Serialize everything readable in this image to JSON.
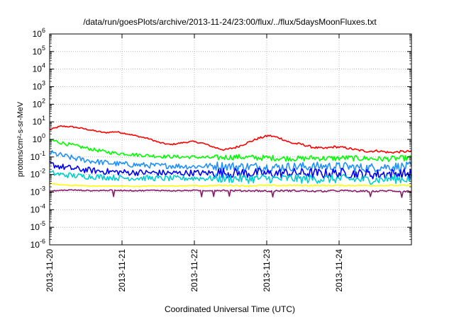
{
  "chart_data": {
    "type": "line",
    "title": "/data/run/goesPlots/archive/2013-11-24/23:00/flux/../flux/5daysMoonFluxes.txt",
    "xlabel": "Coordinated Universal Time (UTC)",
    "ylabel": "protons/cm²-s-sr-MeV",
    "y_scale": "log",
    "ylim_exponents": [
      -6,
      6
    ],
    "y_tick_exponents": [
      -6,
      -5,
      -4,
      -3,
      -2,
      -1,
      0,
      1,
      2,
      3,
      4,
      5,
      6
    ],
    "xlim_days": [
      0,
      5
    ],
    "x_ticks": [
      "2013-11-20",
      "2013-11-21",
      "2013-11-22",
      "2013-11-23",
      "2013-11-24"
    ],
    "grid": true,
    "legend": "none",
    "series": [
      {
        "color": "#ff0000",
        "log10_values": [
          0.55,
          0.75,
          0.72,
          0.62,
          0.5,
          0.38,
          0.44,
          0.33,
          0.18,
          0.05,
          -0.18,
          -0.3,
          -0.2,
          -0.12,
          -0.22,
          -0.45,
          -0.6,
          -0.45,
          -0.2,
          0.05,
          0.22,
          0.08,
          -0.2,
          -0.28,
          -0.45,
          -0.52,
          -0.42,
          -0.48,
          -0.6,
          -0.68,
          -0.65,
          -0.75,
          -0.7,
          -0.68
        ]
      },
      {
        "color": "#00ff00",
        "log10_values": [
          -0.02,
          -0.18,
          -0.32,
          -0.45,
          -0.58,
          -0.7,
          -0.78,
          -0.82,
          -0.88,
          -0.92,
          -0.96,
          -0.98,
          -1.0,
          -1.0,
          -1.02,
          -1.05,
          -1.02,
          -1.0,
          -1.02,
          -1.05,
          -1.05,
          -1.08,
          -1.08,
          -1.1,
          -1.05,
          -1.08,
          -1.08,
          -1.05,
          -1.08,
          -1.08,
          -1.12,
          -1.1,
          -1.08,
          -1.05
        ]
      },
      {
        "color": "#1e90ff",
        "log10_values": [
          -0.75,
          -0.9,
          -1.05,
          -1.15,
          -1.25,
          -1.32,
          -1.38,
          -1.42,
          -1.45,
          -1.48,
          -1.5,
          -1.5,
          -1.52,
          -1.55,
          -1.52,
          -1.5,
          -1.52,
          -1.55,
          -1.55,
          -1.55,
          -1.58,
          -1.58,
          -1.55,
          -1.55,
          -1.55,
          -1.52,
          -1.55,
          -1.55,
          -1.6,
          -1.62,
          -1.58,
          -1.55,
          -1.55,
          -1.55
        ]
      },
      {
        "color": "#0000ff",
        "log10_values": [
          -1.4,
          -1.55,
          -1.65,
          -1.72,
          -1.78,
          -1.82,
          -1.85,
          -1.88,
          -1.88,
          -1.9,
          -1.9,
          -1.92,
          -1.92,
          -1.9,
          -1.92,
          -1.9,
          -1.9,
          -1.92,
          -1.92,
          -1.92,
          -1.95,
          -1.92,
          -1.92,
          -1.92,
          -1.92,
          -1.95,
          -1.92,
          -1.92,
          -1.95,
          -1.98,
          -1.98,
          -1.95,
          -1.95,
          -1.95
        ]
      },
      {
        "color": "#00ced1",
        "log10_values": [
          -1.9,
          -2.0,
          -2.05,
          -2.1,
          -2.12,
          -2.15,
          -2.18,
          -2.2,
          -2.2,
          -2.2,
          -2.22,
          -2.22,
          -2.22,
          -2.2,
          -2.22,
          -2.22,
          -2.22,
          -2.22,
          -2.25,
          -2.22,
          -2.22,
          -2.25,
          -2.22,
          -2.25,
          -2.25,
          -2.25,
          -2.25,
          -2.25,
          -2.28,
          -2.3,
          -2.28,
          -2.25,
          -2.25,
          -2.25
        ]
      },
      {
        "color": "#ffff00",
        "log10_values": [
          -2.5,
          -2.58,
          -2.62,
          -2.62,
          -2.65,
          -2.65,
          -2.65,
          -2.65,
          -2.68,
          -2.65,
          -2.65,
          -2.65,
          -2.65,
          -2.62,
          -2.65,
          -2.62,
          -2.62,
          -2.62,
          -2.65,
          -2.62,
          -2.62,
          -2.62,
          -2.62,
          -2.62,
          -2.62,
          -2.62,
          -2.62,
          -2.62,
          -2.62,
          -2.62,
          -2.62,
          -2.62,
          -2.62,
          -2.62
        ]
      },
      {
        "color": "#8b1a6b",
        "log10_values": [
          -2.95,
          -2.9,
          -2.88,
          -2.9,
          -2.92,
          -2.9,
          -2.9,
          -2.9,
          -2.92,
          -2.9,
          -2.9,
          -2.92,
          -2.92,
          -2.9,
          -2.92,
          -2.9,
          -2.9,
          -2.92,
          -2.92,
          -2.92,
          -2.95,
          -2.92,
          -2.92,
          -2.92,
          -2.95,
          -2.95,
          -2.92,
          -2.92,
          -2.95,
          -2.95,
          -2.95,
          -2.92,
          -2.95,
          -2.95
        ]
      }
    ]
  }
}
